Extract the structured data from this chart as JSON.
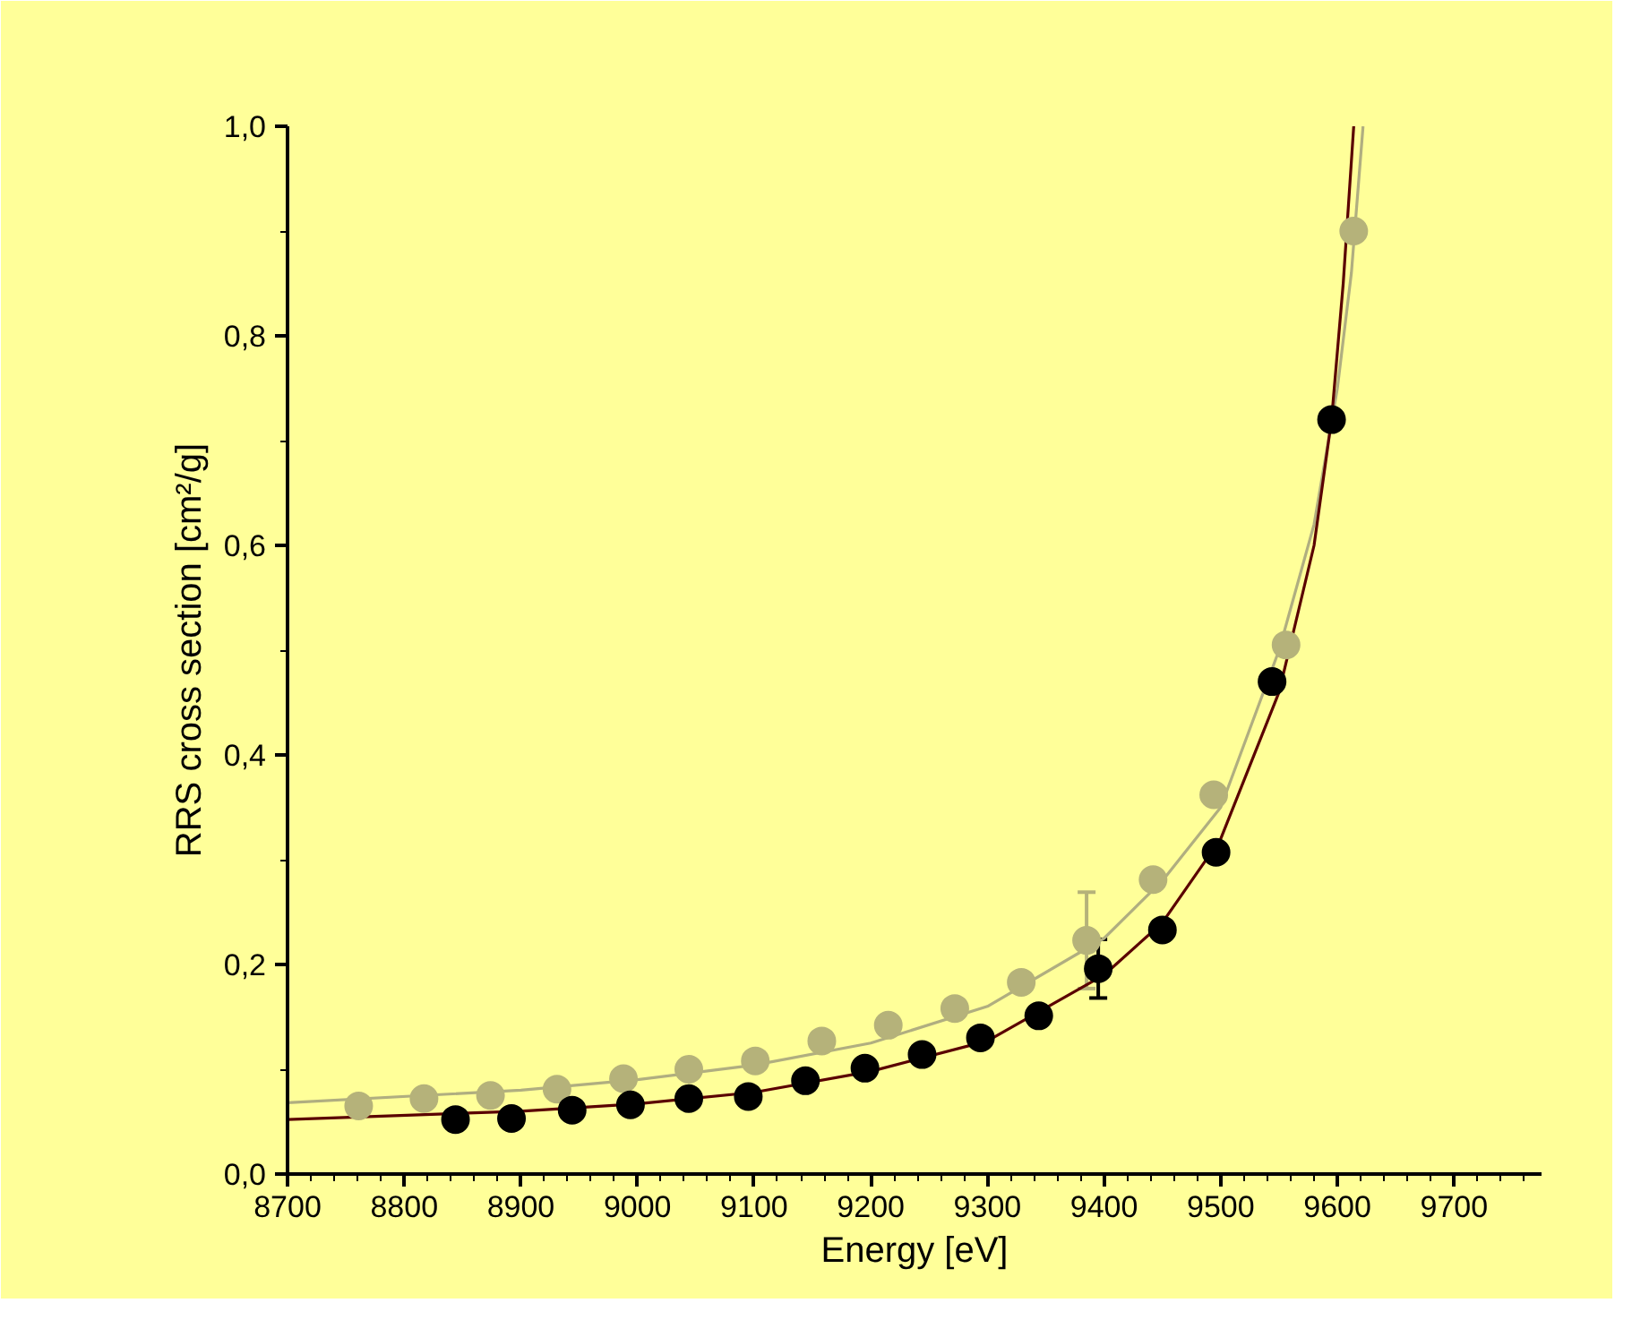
{
  "chart_data": {
    "type": "scatter",
    "xlabel": "Energy [eV]",
    "ylabel": "RRS cross section [cm²/g]",
    "xlim": [
      8700,
      9775
    ],
    "ylim": [
      0,
      1.0
    ],
    "xticks": [
      8700,
      8800,
      8900,
      9000,
      9100,
      9200,
      9300,
      9400,
      9500,
      9600,
      9700
    ],
    "yticks": [
      {
        "value": 0,
        "label": "0,0"
      },
      {
        "value": 0.2,
        "label": "0,2"
      },
      {
        "value": 0.4,
        "label": "0,4"
      },
      {
        "value": 0.6,
        "label": "0,6"
      },
      {
        "value": 0.8,
        "label": "0,8"
      },
      {
        "value": 1.0,
        "label": "1,0"
      }
    ],
    "grid": false,
    "series": [
      {
        "type": "line",
        "color": "#b0ae80",
        "x": [
          8700,
          8900,
          9000,
          9100,
          9200,
          9300,
          9400,
          9450,
          9500,
          9550,
          9580,
          9600,
          9612,
          9622
        ],
        "values": [
          0.068,
          0.08,
          0.09,
          0.104,
          0.125,
          0.16,
          0.225,
          0.28,
          0.35,
          0.5,
          0.62,
          0.75,
          0.86,
          1.0
        ]
      },
      {
        "type": "line",
        "color": "#5a0000",
        "x": [
          8700,
          8900,
          9000,
          9100,
          9200,
          9300,
          9400,
          9450,
          9500,
          9550,
          9580,
          9595,
          9605,
          9614
        ],
        "values": [
          0.052,
          0.06,
          0.067,
          0.078,
          0.098,
          0.127,
          0.19,
          0.24,
          0.32,
          0.46,
          0.6,
          0.72,
          0.85,
          1.0
        ]
      },
      {
        "marker": "circle",
        "color": "#b5b27a",
        "x": [
          8761,
          8817,
          8874,
          8931,
          8988,
          9044,
          9101,
          9158,
          9215,
          9272,
          9329,
          9385,
          9442,
          9494,
          9556,
          9614
        ],
        "values": [
          0.065,
          0.072,
          0.075,
          0.081,
          0.091,
          0.1,
          0.108,
          0.127,
          0.142,
          0.158,
          0.183,
          0.223,
          0.281,
          0.362,
          0.505,
          0.9
        ],
        "errors": [
          null,
          null,
          null,
          null,
          null,
          null,
          null,
          null,
          null,
          null,
          null,
          0.046,
          null,
          null,
          null,
          null
        ]
      },
      {
        "marker": "circle",
        "color": "#000000",
        "x": [
          8844,
          8892,
          8944,
          8994,
          9044,
          9095,
          9144,
          9195,
          9244,
          9294,
          9344,
          9395,
          9450,
          9496,
          9544,
          9595
        ],
        "values": [
          0.052,
          0.053,
          0.061,
          0.066,
          0.072,
          0.074,
          0.089,
          0.101,
          0.114,
          0.13,
          0.151,
          0.196,
          0.233,
          0.307,
          0.47,
          0.72
        ],
        "errors": [
          null,
          null,
          null,
          null,
          null,
          null,
          null,
          null,
          null,
          null,
          null,
          0.028,
          null,
          null,
          null,
          null
        ]
      }
    ]
  }
}
